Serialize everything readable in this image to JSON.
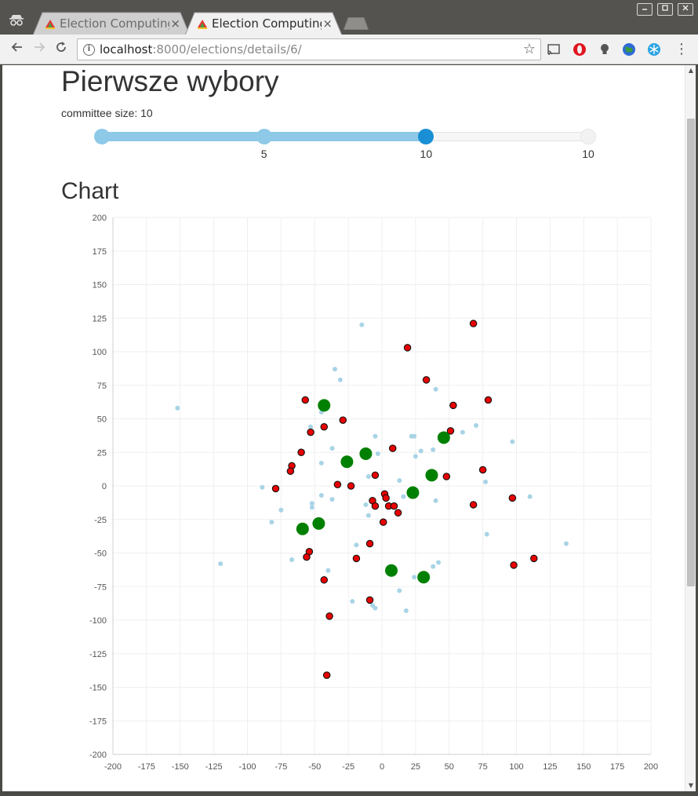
{
  "browser": {
    "tabs": [
      {
        "title": "Election Computing",
        "active": false
      },
      {
        "title": "Election Computing",
        "active": true
      }
    ],
    "close_glyph": "×",
    "address": {
      "host": "localhost",
      "rest": ":8000/elections/details/6/"
    },
    "window_controls": [
      "minimize",
      "maximize",
      "close"
    ],
    "icons": [
      "incognito-icon",
      "back-icon",
      "forward-icon",
      "reload-icon",
      "info-icon",
      "star-icon",
      "cast-icon",
      "opera-icon",
      "bulb-icon",
      "globe-icon",
      "snowflake-icon",
      "menu-icon"
    ]
  },
  "page": {
    "title": "Pierwsze wybory",
    "committee_label": "committee size: 10",
    "chart_heading": "Chart"
  },
  "slider": {
    "min": 0,
    "max": 15,
    "handles": [
      0,
      5,
      10,
      15
    ],
    "active_handle": 10,
    "tick_labels": [
      "5",
      "10",
      "10"
    ]
  },
  "colors": {
    "accent": "#8ec9e8",
    "accent_active": "#1a8fd6",
    "voter": "#a8d4e6",
    "candidate": "#e80000",
    "winner": "#008000"
  },
  "chart_data": {
    "type": "scatter",
    "xlim": [
      -200,
      200
    ],
    "ylim": [
      -200,
      200
    ],
    "xticks": [
      -200,
      -175,
      -150,
      -125,
      -100,
      -75,
      -50,
      -25,
      0,
      25,
      50,
      75,
      100,
      125,
      150,
      175,
      200
    ],
    "yticks": [
      -200,
      -175,
      -150,
      -125,
      -100,
      -75,
      -50,
      -25,
      0,
      25,
      50,
      75,
      100,
      125,
      150,
      175,
      200
    ],
    "grid": true,
    "series": [
      {
        "role": "voters",
        "points": [
          [
            -15,
            120
          ],
          [
            -35,
            87
          ],
          [
            -31,
            79
          ],
          [
            40,
            72
          ],
          [
            -152,
            58
          ],
          [
            -45,
            55
          ],
          [
            -53,
            44
          ],
          [
            70,
            45
          ],
          [
            60,
            40
          ],
          [
            24,
            37
          ],
          [
            22,
            37
          ],
          [
            -5,
            37
          ],
          [
            38,
            27
          ],
          [
            29,
            26
          ],
          [
            -37,
            28
          ],
          [
            25,
            22
          ],
          [
            -45,
            17
          ],
          [
            97,
            33
          ],
          [
            -3,
            24
          ],
          [
            -10,
            7
          ],
          [
            13,
            4
          ],
          [
            77,
            3
          ],
          [
            -89,
            -1
          ],
          [
            -75,
            -18
          ],
          [
            -45,
            -7
          ],
          [
            -52,
            -13
          ],
          [
            -52,
            -16
          ],
          [
            -37,
            -10
          ],
          [
            -12,
            -14
          ],
          [
            40,
            -11
          ],
          [
            16,
            -8
          ],
          [
            23,
            -7
          ],
          [
            -82,
            -27
          ],
          [
            -10,
            -22
          ],
          [
            110,
            -8
          ],
          [
            78,
            -36
          ],
          [
            137,
            -43
          ],
          [
            -19,
            -44
          ],
          [
            -120,
            -58
          ],
          [
            -67,
            -55
          ],
          [
            42,
            -57
          ],
          [
            38,
            -60
          ],
          [
            -40,
            -63
          ],
          [
            24,
            -68
          ],
          [
            -7,
            -89
          ],
          [
            -22,
            -86
          ],
          [
            -5,
            -91
          ],
          [
            13,
            -78
          ],
          [
            18,
            -93
          ]
        ]
      },
      {
        "role": "candidates",
        "points": [
          [
            68,
            121
          ],
          [
            19,
            103
          ],
          [
            33,
            79
          ],
          [
            53,
            60
          ],
          [
            79,
            64
          ],
          [
            -57,
            64
          ],
          [
            -29,
            49
          ],
          [
            -43,
            44
          ],
          [
            -53,
            40
          ],
          [
            51,
            41
          ],
          [
            -60,
            25
          ],
          [
            8,
            28
          ],
          [
            75,
            12
          ],
          [
            -67,
            15
          ],
          [
            -68,
            11
          ],
          [
            -5,
            8
          ],
          [
            48,
            7
          ],
          [
            -79,
            -2
          ],
          [
            -33,
            1
          ],
          [
            -23,
            0
          ],
          [
            2,
            -6
          ],
          [
            3,
            -9
          ],
          [
            -7,
            -11
          ],
          [
            -5,
            -15
          ],
          [
            5,
            -15
          ],
          [
            9,
            -15
          ],
          [
            12,
            -20
          ],
          [
            1,
            -27
          ],
          [
            68,
            -14
          ],
          [
            97,
            -9
          ],
          [
            -9,
            -43
          ],
          [
            -54,
            -49
          ],
          [
            -56,
            -53
          ],
          [
            -19,
            -54
          ],
          [
            113,
            -54
          ],
          [
            98,
            -59
          ],
          [
            -43,
            -70
          ],
          [
            -9,
            -85
          ],
          [
            -39,
            -97
          ],
          [
            -41,
            -141
          ]
        ]
      },
      {
        "role": "winners",
        "points": [
          [
            -43,
            60
          ],
          [
            46,
            36
          ],
          [
            -12,
            24
          ],
          [
            -26,
            18
          ],
          [
            37,
            8
          ],
          [
            23,
            -5
          ],
          [
            -47,
            -28
          ],
          [
            -59,
            -32
          ],
          [
            7,
            -63
          ],
          [
            31,
            -68
          ]
        ]
      }
    ]
  }
}
